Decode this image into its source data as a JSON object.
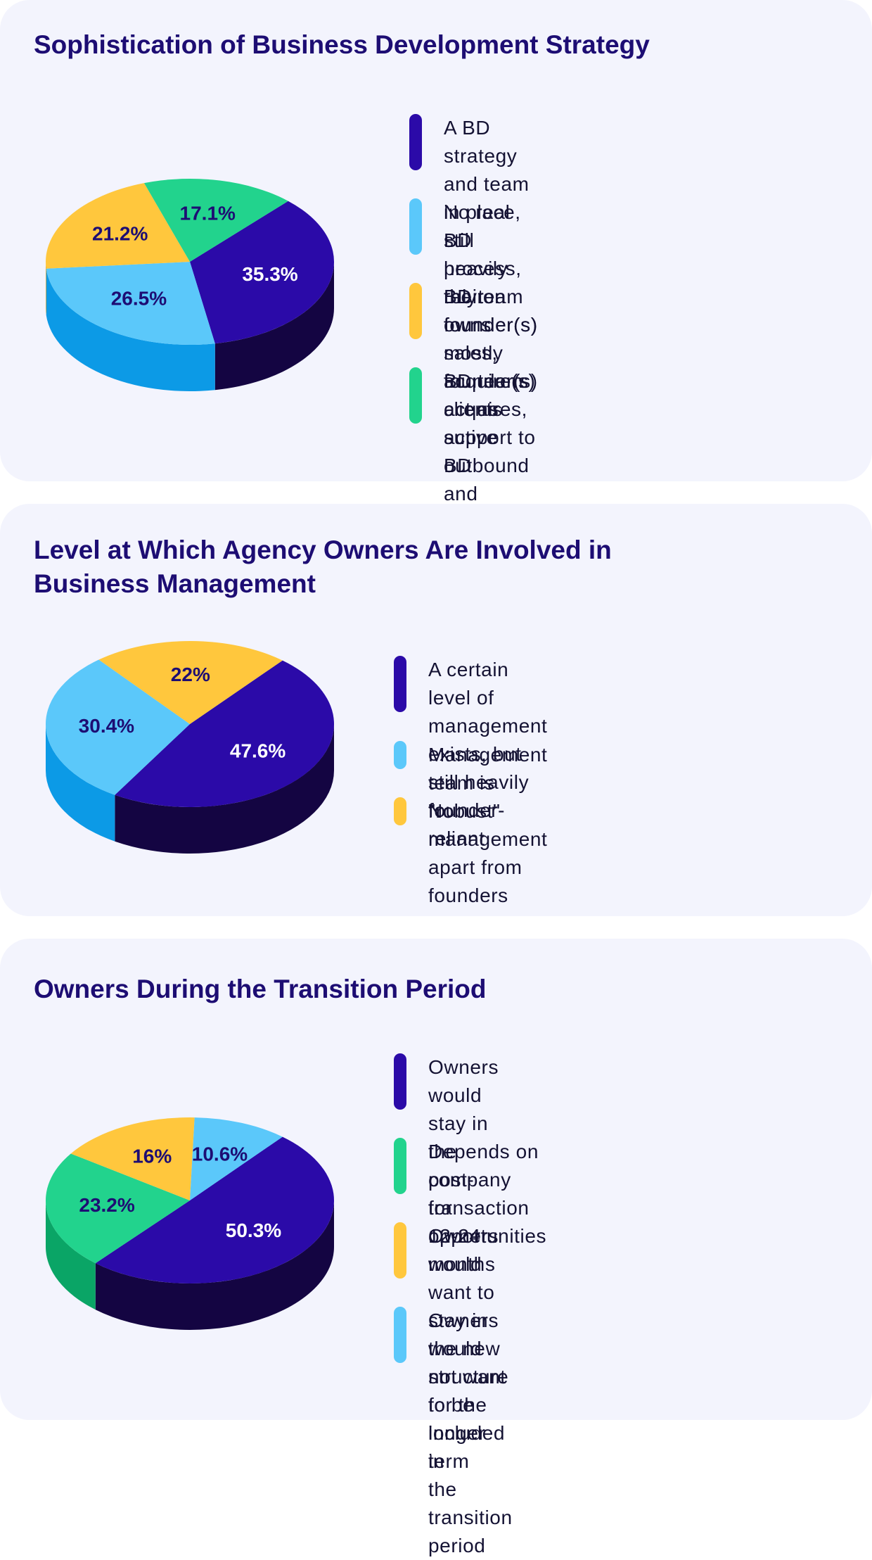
{
  "chart_data": [
    {
      "type": "pie",
      "title": "Sophistication of Business Development Strategy",
      "start_angle_deg": -47,
      "slices": [
        {
          "label": "A BD strategy and team in place, still heavily rely on founder(s)",
          "value": 35.3,
          "display": "35.3%",
          "color": "#2b0aa8",
          "side": "#140542",
          "text_color": "#ffffff"
        },
        {
          "label": "No real BD process, their founder(s) mostly acquire(s) clients",
          "value": 26.5,
          "display": "26.5%",
          "color": "#5bc8fa",
          "side": "#0c9ae6",
          "text_color": "#1d0d73"
        },
        {
          "label": "BD team owns sales, founder(s) act as support to BD",
          "value": 21.2,
          "display": "21.2%",
          "color": "#ffc73d",
          "side": "#e4a521",
          "text_color": "#1d0d73"
        },
        {
          "label": "BD team acquires, active outbound and inbound strategies in place",
          "value": 17.1,
          "display": "17.1%",
          "color": "#22d38d",
          "side": "#0aa566",
          "text_color": "#1d0d73"
        }
      ],
      "legend": [
        {
          "text": "A BD strategy and team in place, still\nheavily rely on founder(s)",
          "color": "#2b0aa8"
        },
        {
          "text": "No real BD process, their founder(s)\nmostly acquire(s) clients",
          "color": "#5bc8fa"
        },
        {
          "text": "BD team owns sales, founder(s) act as\nsupport to BD",
          "color": "#ffc73d"
        },
        {
          "text": "BD team acquires, active outbound and\ninbound strategies in place",
          "color": "#22d38d"
        }
      ]
    },
    {
      "type": "pie",
      "title": "Level at Which Agency Owners Are Involved in\nBusiness Management",
      "start_angle_deg": -50,
      "slices": [
        {
          "label": "A certain level of management exists, but still heavily founder-reliant",
          "value": 47.6,
          "display": "47.6%",
          "color": "#2b0aa8",
          "side": "#140542",
          "text_color": "#ffffff"
        },
        {
          "label": "Management team is \"robust\"",
          "value": 30.4,
          "display": "30.4%",
          "color": "#5bc8fa",
          "side": "#0c9ae6",
          "text_color": "#1d0d73"
        },
        {
          "label": "No management apart from founders",
          "value": 22,
          "display": "22%",
          "color": "#ffc73d",
          "side": "#e4a521",
          "text_color": "#1d0d73"
        }
      ],
      "slice_order_clockwise": [
        0,
        1,
        2
      ],
      "legend": [
        {
          "text": "A certain level of management exists, but\nstill heavily founder-reliant",
          "color": "#2b0aa8"
        },
        {
          "text": "Management team is \"robust\"",
          "color": "#5bc8fa"
        },
        {
          "text": "No management apart from founders",
          "color": "#ffc73d"
        }
      ]
    },
    {
      "type": "pie",
      "title": "Owners During the Transition Period",
      "start_angle_deg": -50,
      "slices": [
        {
          "label": "Owners would stay in the company for 12-24 months",
          "value": 50.3,
          "display": "50.3%",
          "color": "#2b0aa8",
          "side": "#140542",
          "text_color": "#ffffff"
        },
        {
          "label": "Depends on post-transaction opportunities",
          "value": 23.2,
          "display": "23.2%",
          "color": "#22d38d",
          "side": "#0aa566",
          "text_color": "#1d0d73"
        },
        {
          "label": "Owners would want to stay in the new structure for the longer term",
          "value": 16,
          "display": "16%",
          "color": "#ffc73d",
          "side": "#e4a521",
          "text_color": "#1d0d73"
        },
        {
          "label": "Owners would not want to be included in the transition period",
          "value": 10.6,
          "display": "10.6%",
          "color": "#5bc8fa",
          "side": "#0c9ae6",
          "text_color": "#1d0d73"
        }
      ],
      "legend": [
        {
          "text": "Owners would stay in the company for\n12-24 months",
          "color": "#2b0aa8"
        },
        {
          "text": "Depends on post-transaction\nopportunities",
          "color": "#22d38d"
        },
        {
          "text": "Owners would want to stay in the new\nstructure for the longer term",
          "color": "#ffc73d"
        },
        {
          "text": "Owners would not want to be included in\nthe transition period",
          "color": "#5bc8fa"
        }
      ]
    }
  ]
}
